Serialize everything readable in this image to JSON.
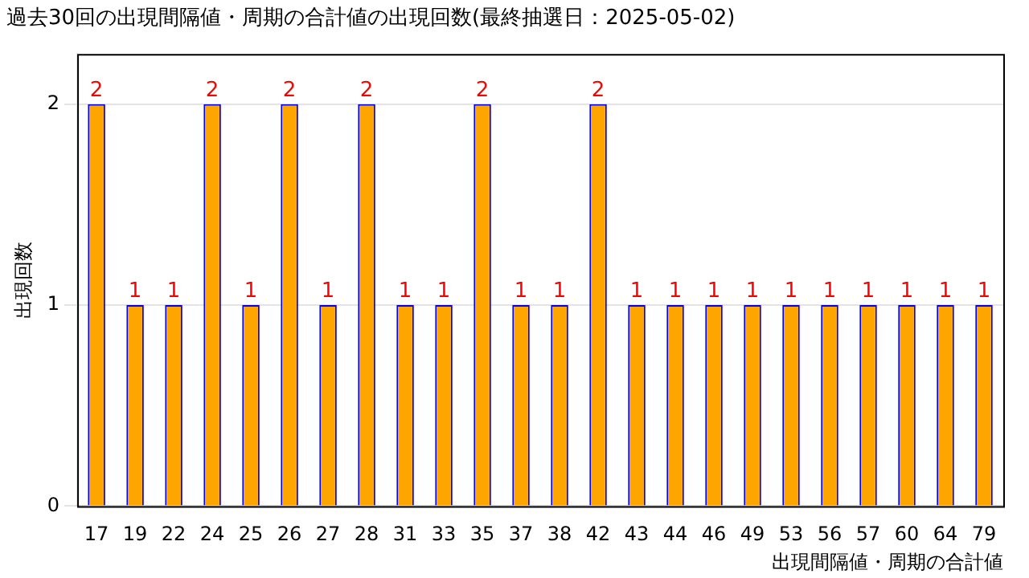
{
  "chart_data": {
    "type": "bar",
    "title": "過去30回の出現間隔値・周期の合計値の出現回数(最終抽選日：2025-05-02)",
    "xlabel": "出現間隔値・周期の合計値",
    "ylabel": "出現回数",
    "categories": [
      "17",
      "19",
      "22",
      "24",
      "25",
      "26",
      "27",
      "28",
      "31",
      "33",
      "35",
      "37",
      "38",
      "42",
      "43",
      "44",
      "46",
      "49",
      "53",
      "56",
      "57",
      "60",
      "64",
      "79"
    ],
    "values": [
      2,
      1,
      1,
      2,
      1,
      2,
      1,
      2,
      1,
      1,
      2,
      1,
      1,
      2,
      1,
      1,
      1,
      1,
      1,
      1,
      1,
      1,
      1,
      1
    ],
    "color": "#ffa500",
    "ylim": [
      0,
      2.25
    ],
    "yticks": [
      0,
      1,
      2
    ],
    "grid": "y",
    "legend": false,
    "data_labels": true
  }
}
